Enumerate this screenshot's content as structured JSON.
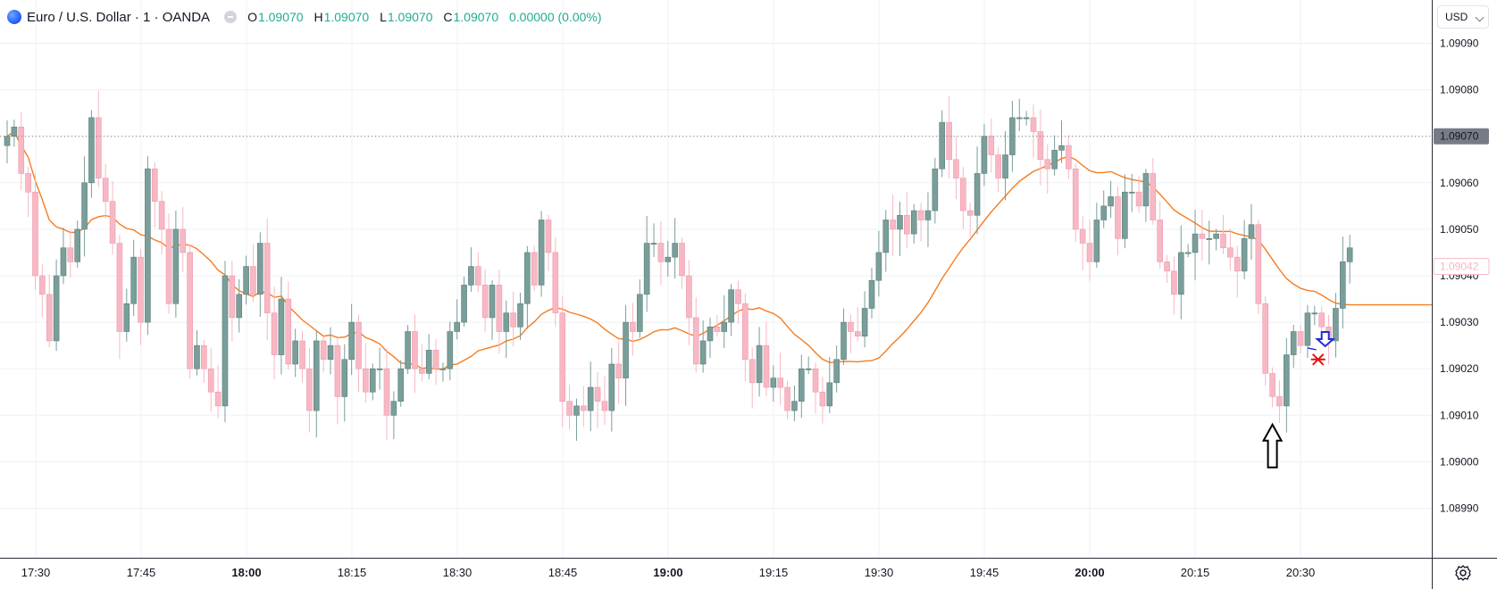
{
  "legend": {
    "symbol": "Euro / U.S. Dollar · 1 · OANDA",
    "ohlc": {
      "o_label": "O",
      "o": "1.09070",
      "h_label": "H",
      "h": "1.09070",
      "l_label": "L",
      "l": "1.09070",
      "c_label": "C",
      "c": "1.09070",
      "change": "0.00000 (0.00%)"
    }
  },
  "currency": "USD",
  "colors": {
    "up": "#7a9e9a",
    "up_border": "#5b7f7b",
    "down": "#f7b8c4",
    "down_border": "#ef9aab",
    "ma": "#f57c20",
    "grid": "#eef0f4",
    "axis_text": "#131722",
    "last_price_bg": "#787b86",
    "current_price_border": "#f7b8c4"
  },
  "chart_data": {
    "type": "candlestick",
    "interval_minutes": 1,
    "ylim": [
      1.08985,
      1.09095
    ],
    "y_ticks": [
      "1.08990",
      "1.09000",
      "1.09010",
      "1.09020",
      "1.09030",
      "1.09040",
      "1.09050",
      "1.09060",
      "1.09070",
      "1.09080",
      "1.09090"
    ],
    "x_ticks": [
      {
        "label": "17:30",
        "bold": false
      },
      {
        "label": "17:45",
        "bold": false
      },
      {
        "label": "18:00",
        "bold": true
      },
      {
        "label": "18:15",
        "bold": false
      },
      {
        "label": "18:30",
        "bold": false
      },
      {
        "label": "18:45",
        "bold": false
      },
      {
        "label": "19:00",
        "bold": true
      },
      {
        "label": "19:15",
        "bold": false
      },
      {
        "label": "19:30",
        "bold": false
      },
      {
        "label": "19:45",
        "bold": false
      },
      {
        "label": "20:00",
        "bold": true
      },
      {
        "label": "20:15",
        "bold": false
      },
      {
        "label": "20:30",
        "bold": false
      }
    ],
    "first_bar_time": "17:26",
    "price_lines": [
      {
        "label": "1.09070",
        "value": 1.0907,
        "style": "dotted",
        "badge": "filled"
      },
      {
        "label": "1.09042",
        "value": 1.09042,
        "style": "none",
        "badge": "outline"
      }
    ],
    "closes": [
      1.0907,
      1.09072,
      1.09062,
      1.09058,
      1.0904,
      1.09036,
      1.09026,
      1.0904,
      1.09046,
      1.09043,
      1.0905,
      1.0906,
      1.09074,
      1.09061,
      1.09056,
      1.09047,
      1.09028,
      1.09034,
      1.09044,
      1.0903,
      1.09063,
      1.09056,
      1.0905,
      1.09034,
      1.0905,
      1.09045,
      1.0902,
      1.09025,
      1.0902,
      1.09015,
      1.09012,
      1.0904,
      1.09031,
      1.09036,
      1.09042,
      1.09036,
      1.09047,
      1.09032,
      1.09023,
      1.09035,
      1.09021,
      1.09026,
      1.0902,
      1.09011,
      1.09026,
      1.09022,
      1.09025,
      1.09014,
      1.09022,
      1.0903,
      1.0902,
      1.09015,
      1.0902,
      1.0902,
      1.0901,
      1.09013,
      1.0902,
      1.09028,
      1.0902,
      1.09019,
      1.09024,
      1.0902,
      1.0902,
      1.09028,
      1.0903,
      1.09038,
      1.09042,
      1.09038,
      1.09031,
      1.09038,
      1.09028,
      1.09032,
      1.09029,
      1.09034,
      1.09045,
      1.09038,
      1.09052,
      1.09045,
      1.09032,
      1.09013,
      1.0901,
      1.09012,
      1.09011,
      1.09016,
      1.09013,
      1.09011,
      1.09021,
      1.09018,
      1.0903,
      1.09028,
      1.09036,
      1.09047,
      1.09047,
      1.09043,
      1.09044,
      1.09047,
      1.0904,
      1.09031,
      1.09021,
      1.09026,
      1.09029,
      1.09028,
      1.0903,
      1.09037,
      1.09034,
      1.09022,
      1.09017,
      1.09025,
      1.09016,
      1.09018,
      1.09016,
      1.09011,
      1.09013,
      1.0902,
      1.0902,
      1.09015,
      1.09012,
      1.09017,
      1.09022,
      1.0903,
      1.09028,
      1.09027,
      1.09033,
      1.09039,
      1.09045,
      1.09052,
      1.0905,
      1.09053,
      1.09049,
      1.09054,
      1.09052,
      1.09054,
      1.09063,
      1.09073,
      1.09065,
      1.09061,
      1.09054,
      1.09053,
      1.09062,
      1.0907,
      1.09066,
      1.09061,
      1.09066,
      1.09074,
      1.09074,
      1.09074,
      1.09071,
      1.09065,
      1.09063,
      1.09067,
      1.09068,
      1.09063,
      1.0905,
      1.09047,
      1.09043,
      1.09052,
      1.09055,
      1.09057,
      1.09048,
      1.09058,
      1.09058,
      1.09055,
      1.09062,
      1.09052,
      1.09043,
      1.09041,
      1.09036,
      1.09045,
      1.09045,
      1.09049,
      1.09048,
      1.09048,
      1.09049,
      1.09046,
      1.09044,
      1.09041,
      1.09048,
      1.09051,
      1.09034,
      1.09019,
      1.09014,
      1.09012,
      1.09023,
      1.09028,
      1.09025,
      1.09032,
      1.09032,
      1.09029,
      1.09026,
      1.09033,
      1.09043,
      1.09046
    ]
  },
  "annotations": {
    "arrow_up_value": 1.09008,
    "arrow_down_value": 1.09026,
    "cross_value": 1.09022
  }
}
